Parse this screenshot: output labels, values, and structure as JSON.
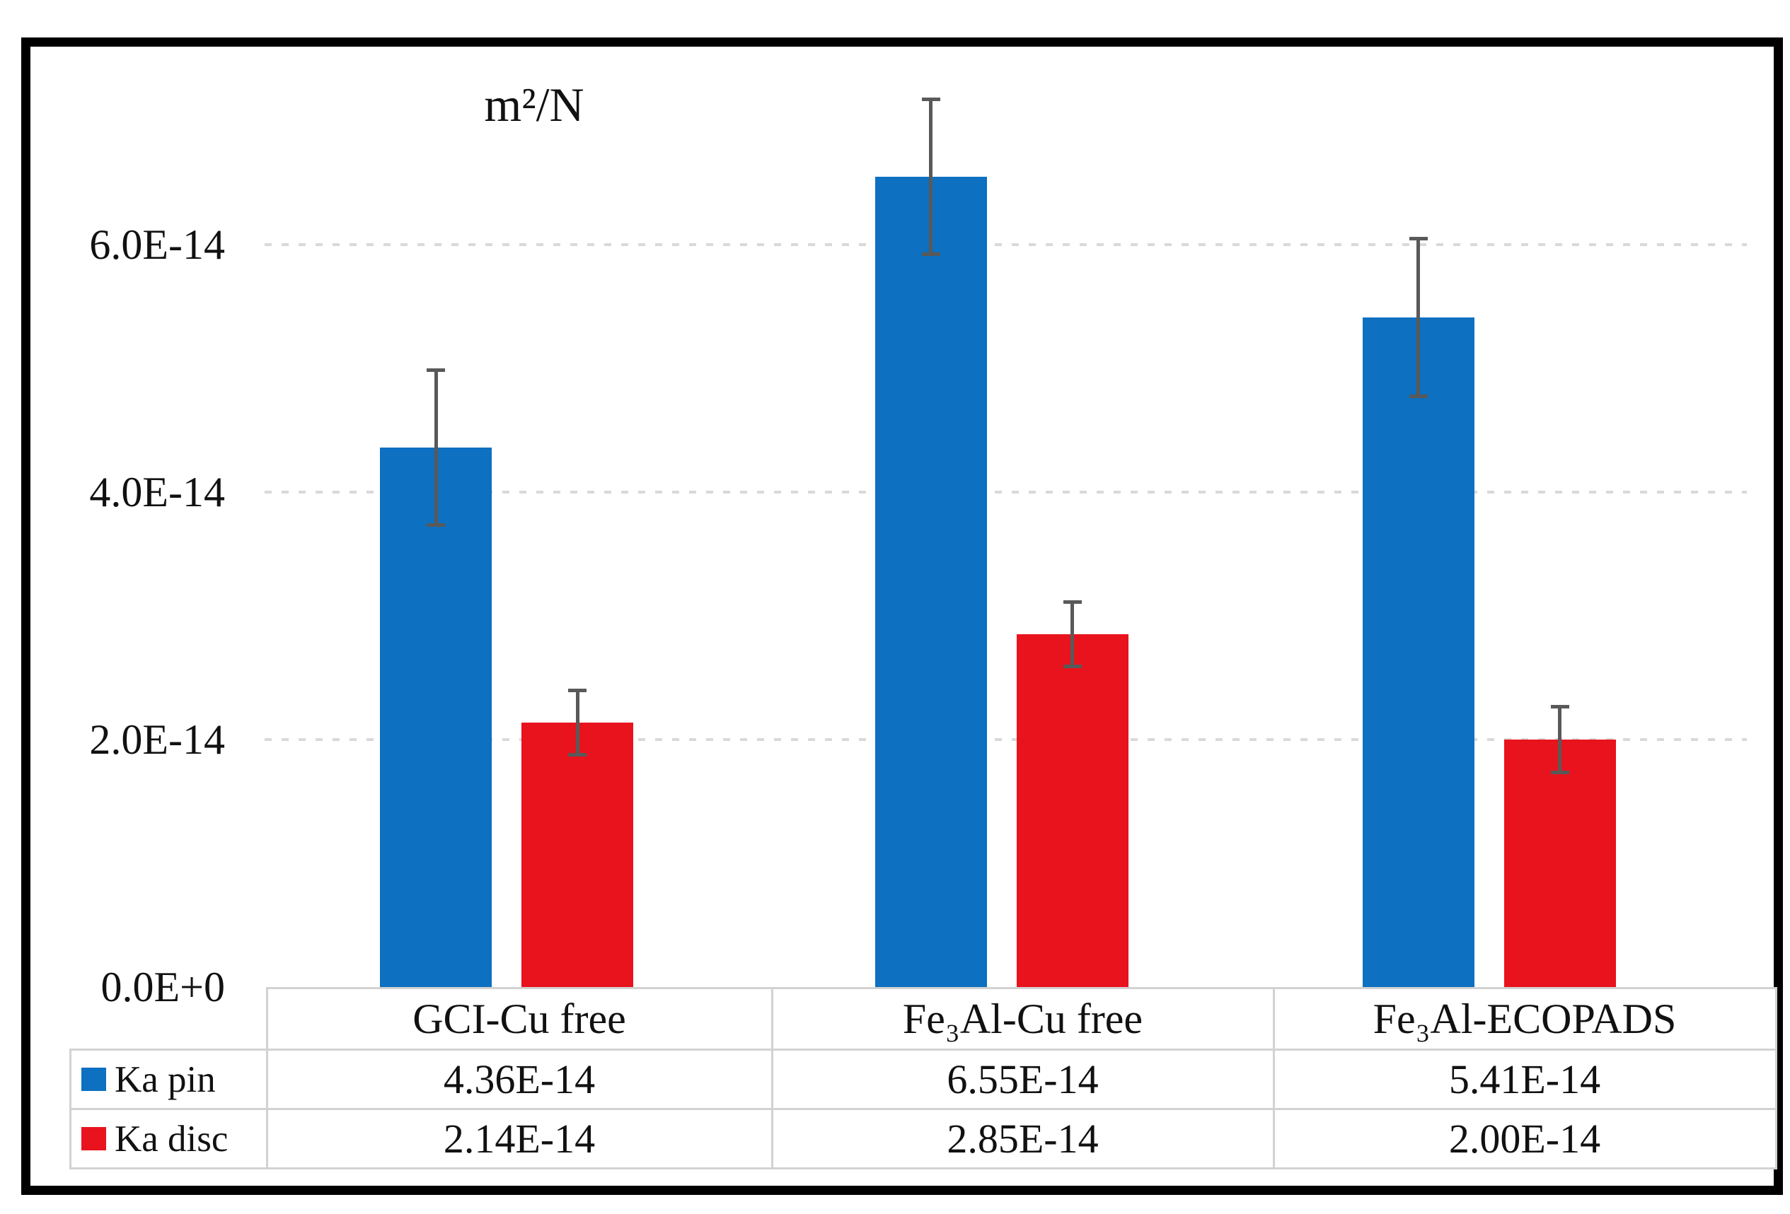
{
  "chart_data": {
    "type": "bar",
    "title": "m²/N",
    "ylabel": "m²/N",
    "xlabel": "",
    "categories": [
      "GCI-Cu free",
      "Fe₃Al-Cu free",
      "Fe₃Al-ECOPADS"
    ],
    "series": [
      {
        "name": "Ka pin",
        "color": "#0d70c0",
        "values": [
          4.36e-14,
          6.55e-14,
          5.41e-14
        ],
        "value_labels": [
          "4.36E-14",
          "6.55E-14",
          "5.41E-14"
        ],
        "errors": [
          6.3e-15,
          6.3e-15,
          6.4e-15
        ]
      },
      {
        "name": "Ka disc",
        "color": "#e8131d",
        "values": [
          2.14e-14,
          2.85e-14,
          2e-14
        ],
        "value_labels": [
          "2.14E-14",
          "2.85E-14",
          "2.00E-14"
        ],
        "errors": [
          2.6e-15,
          2.6e-15,
          2.7e-15
        ]
      }
    ],
    "yticks": [
      {
        "value": 0,
        "label": "0.0E+0"
      },
      {
        "value": 2e-14,
        "label": "2.0E-14"
      },
      {
        "value": 4e-14,
        "label": "4.0E-14"
      },
      {
        "value": 6e-14,
        "label": "6.0E-14"
      }
    ],
    "ylim": [
      0,
      7.3e-14
    ],
    "grid": "horizontal-dashed",
    "error_bar_color": "#595959",
    "legend_position": "table-left-column",
    "table_shown": true
  }
}
